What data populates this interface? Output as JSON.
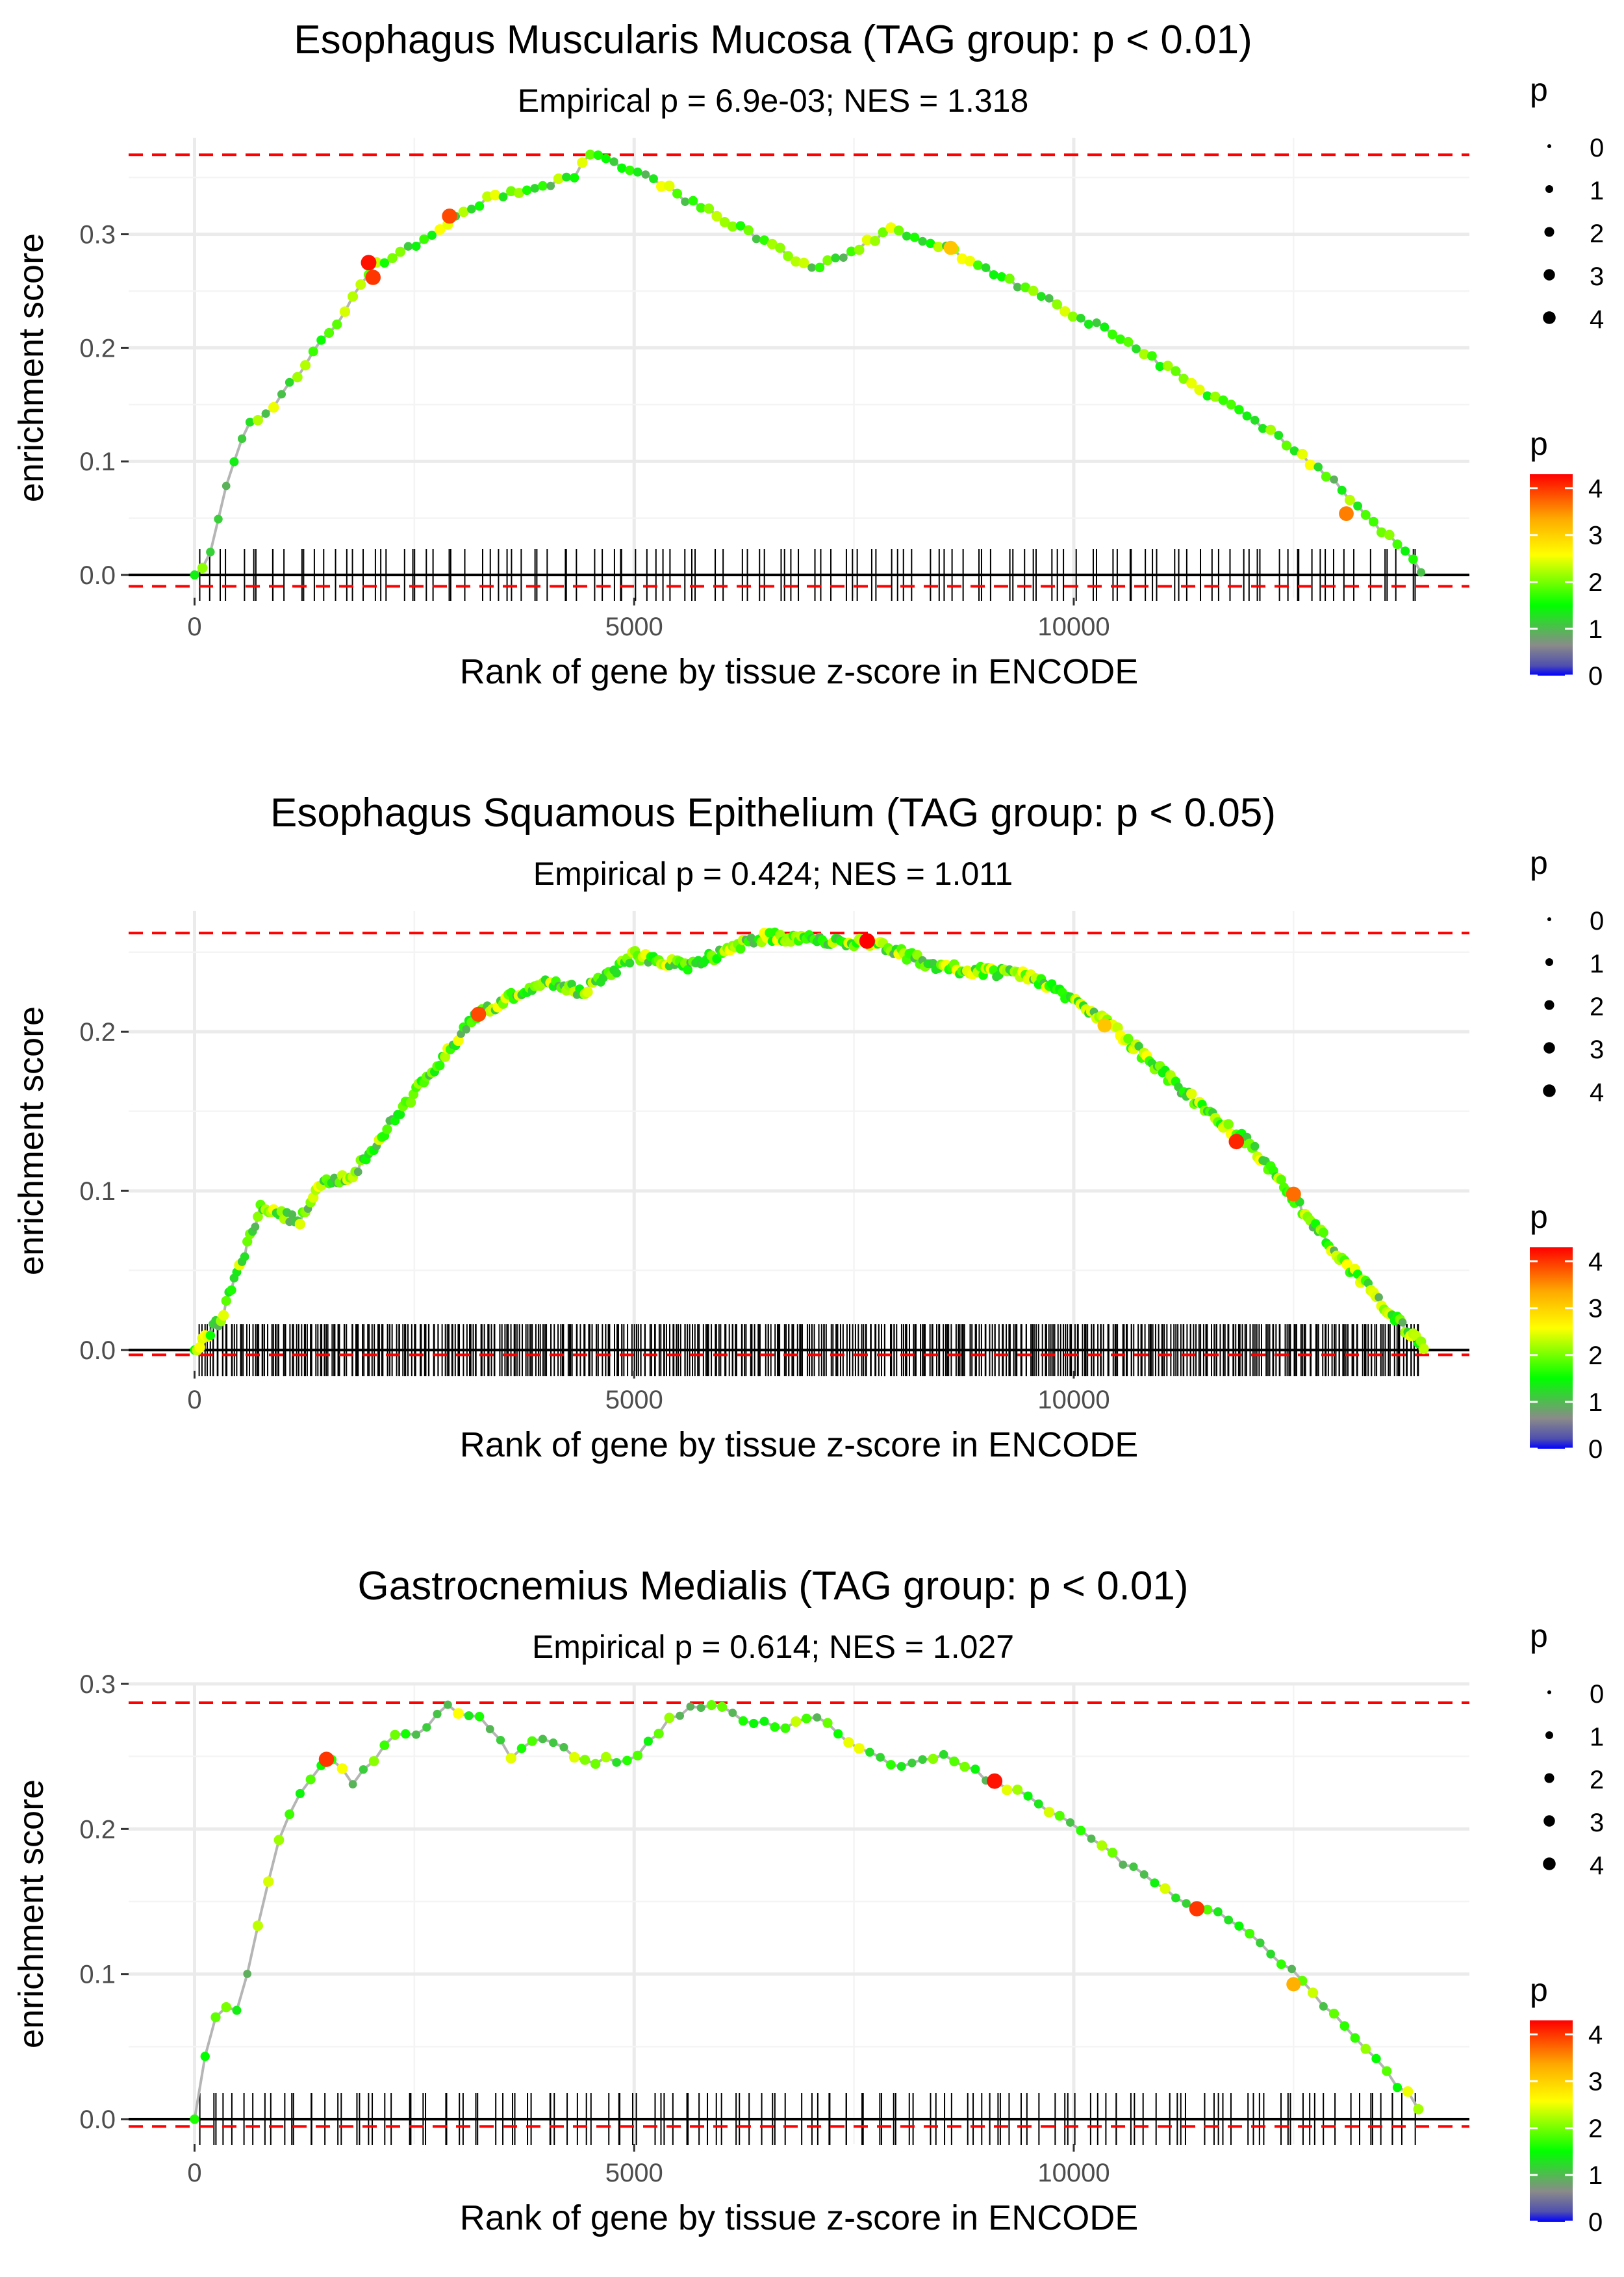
{
  "legend_common": {
    "size_title": "p",
    "size_labels": [
      "0",
      "1",
      "2",
      "3",
      "4"
    ],
    "color_title": "p",
    "color_ticks": [
      "4",
      "3",
      "2",
      "1",
      "0"
    ]
  },
  "chart_data": [
    {
      "type": "line",
      "title": "Esophagus Muscularis Mucosa (TAG group: p < 0.01)",
      "subtitle": "Empirical p = 6.9e-03; NES = 1.318",
      "xlabel": "Rank of gene by tissue z-score in ENCODE",
      "ylabel": "enrichment score",
      "xlim": [
        -750,
        14500
      ],
      "ylim": [
        -0.02,
        0.385
      ],
      "x_ticks": [
        0,
        5000,
        10000
      ],
      "x_tick_labels": [
        "0",
        "5000",
        "10000"
      ],
      "y_ticks": [
        0.0,
        0.1,
        0.2,
        0.3
      ],
      "y_tick_labels": [
        "0.0",
        "0.1",
        "0.2",
        "0.3"
      ],
      "max_es": 0.37,
      "min_es": -0.01,
      "n_genes": 14000,
      "rug_count": 130,
      "point_spacing": 90,
      "seed": 11,
      "anchors": [
        [
          0,
          0.0
        ],
        [
          150,
          0.01
        ],
        [
          400,
          0.09
        ],
        [
          600,
          0.13
        ],
        [
          900,
          0.15
        ],
        [
          1300,
          0.19
        ],
        [
          1700,
          0.23
        ],
        [
          2000,
          0.27
        ],
        [
          2300,
          0.28
        ],
        [
          2900,
          0.31
        ],
        [
          3300,
          0.33
        ],
        [
          3800,
          0.34
        ],
        [
          4300,
          0.35
        ],
        [
          4500,
          0.37
        ],
        [
          4800,
          0.36
        ],
        [
          5200,
          0.35
        ],
        [
          5600,
          0.33
        ],
        [
          6100,
          0.31
        ],
        [
          6600,
          0.29
        ],
        [
          7000,
          0.27
        ],
        [
          7400,
          0.28
        ],
        [
          7900,
          0.305
        ],
        [
          8500,
          0.29
        ],
        [
          9000,
          0.27
        ],
        [
          9500,
          0.25
        ],
        [
          10000,
          0.23
        ],
        [
          10500,
          0.21
        ],
        [
          11000,
          0.185
        ],
        [
          11500,
          0.16
        ],
        [
          12000,
          0.14
        ],
        [
          12500,
          0.11
        ],
        [
          13000,
          0.08
        ],
        [
          13500,
          0.04
        ],
        [
          14000,
          0.0
        ]
      ],
      "big_points": [
        [
          1980,
          0.275,
          4.2
        ],
        [
          2030,
          0.262,
          4.0
        ],
        [
          2900,
          0.316,
          3.9
        ],
        [
          8600,
          0.288,
          3.1
        ],
        [
          13100,
          0.054,
          3.6
        ]
      ],
      "legend_size_title": "p",
      "legend_color_title": "p"
    },
    {
      "type": "line",
      "title": "Esophagus Squamous Epithelium (TAG group: p < 0.05)",
      "subtitle": "Empirical p = 0.424; NES = 1.011",
      "xlabel": "Rank of gene by tissue z-score in ENCODE",
      "ylabel": "enrichment score",
      "xlim": [
        -750,
        14500
      ],
      "ylim": [
        -0.013,
        0.276
      ],
      "x_ticks": [
        0,
        5000,
        10000
      ],
      "x_tick_labels": [
        "0",
        "5000",
        "10000"
      ],
      "y_ticks": [
        0.0,
        0.1,
        0.2
      ],
      "y_tick_labels": [
        "0.0",
        "0.1",
        "0.2"
      ],
      "max_es": 0.262,
      "min_es": -0.003,
      "n_genes": 14000,
      "rug_count": 520,
      "point_spacing": 30,
      "seed": 23,
      "anchors": [
        [
          0,
          0.0
        ],
        [
          300,
          0.02
        ],
        [
          500,
          0.05
        ],
        [
          750,
          0.09
        ],
        [
          1000,
          0.085
        ],
        [
          1200,
          0.08
        ],
        [
          1400,
          0.105
        ],
        [
          1800,
          0.11
        ],
        [
          2200,
          0.14
        ],
        [
          2700,
          0.175
        ],
        [
          3200,
          0.21
        ],
        [
          3700,
          0.225
        ],
        [
          4000,
          0.232
        ],
        [
          4400,
          0.225
        ],
        [
          4700,
          0.235
        ],
        [
          5000,
          0.248
        ],
        [
          5300,
          0.245
        ],
        [
          5600,
          0.24
        ],
        [
          6000,
          0.25
        ],
        [
          6500,
          0.26
        ],
        [
          7000,
          0.258
        ],
        [
          7700,
          0.256
        ],
        [
          8000,
          0.25
        ],
        [
          8500,
          0.24
        ],
        [
          9000,
          0.238
        ],
        [
          9500,
          0.235
        ],
        [
          10000,
          0.22
        ],
        [
          10500,
          0.2
        ],
        [
          11000,
          0.175
        ],
        [
          11500,
          0.15
        ],
        [
          12000,
          0.13
        ],
        [
          12500,
          0.095
        ],
        [
          13000,
          0.06
        ],
        [
          13500,
          0.03
        ],
        [
          14000,
          0.0
        ]
      ],
      "big_points": [
        [
          3230,
          0.211,
          3.9
        ],
        [
          7650,
          0.257,
          4.3
        ],
        [
          10350,
          0.204,
          3.1
        ],
        [
          11850,
          0.131,
          4.1
        ],
        [
          12500,
          0.098,
          3.7
        ]
      ],
      "legend_size_title": "p",
      "legend_color_title": "p"
    },
    {
      "type": "line",
      "title": "Gastrocnemius Medialis (TAG group: p < 0.01)",
      "subtitle": "Empirical p = 0.614; NES = 1.027",
      "xlabel": "Rank of gene by tissue z-score in ENCODE",
      "ylabel": "enrichment score",
      "xlim": [
        -750,
        14500
      ],
      "ylim": [
        -0.017,
        0.3
      ],
      "x_ticks": [
        0,
        5000,
        10000
      ],
      "x_tick_labels": [
        "0",
        "5000",
        "10000"
      ],
      "y_ticks": [
        0.0,
        0.1,
        0.2,
        0.3
      ],
      "y_tick_labels": [
        "0.0",
        "0.1",
        "0.2",
        "0.3"
      ],
      "max_es": 0.287,
      "min_es": -0.005,
      "n_genes": 14000,
      "rug_count": 140,
      "point_spacing": 120,
      "seed": 37,
      "anchors": [
        [
          0,
          0.0
        ],
        [
          100,
          0.04
        ],
        [
          200,
          0.07
        ],
        [
          400,
          0.08
        ],
        [
          500,
          0.07
        ],
        [
          700,
          0.13
        ],
        [
          1000,
          0.2
        ],
        [
          1300,
          0.235
        ],
        [
          1550,
          0.25
        ],
        [
          1800,
          0.23
        ],
        [
          2200,
          0.26
        ],
        [
          2600,
          0.27
        ],
        [
          2800,
          0.285
        ],
        [
          3200,
          0.28
        ],
        [
          3600,
          0.25
        ],
        [
          4000,
          0.265
        ],
        [
          4500,
          0.245
        ],
        [
          5000,
          0.25
        ],
        [
          5500,
          0.28
        ],
        [
          5900,
          0.287
        ],
        [
          6300,
          0.275
        ],
        [
          6700,
          0.27
        ],
        [
          7000,
          0.28
        ],
        [
          7500,
          0.26
        ],
        [
          8000,
          0.24
        ],
        [
          8500,
          0.25
        ],
        [
          9000,
          0.235
        ],
        [
          9500,
          0.22
        ],
        [
          10000,
          0.205
        ],
        [
          10500,
          0.18
        ],
        [
          11000,
          0.16
        ],
        [
          11500,
          0.145
        ],
        [
          12000,
          0.13
        ],
        [
          12500,
          0.1
        ],
        [
          13000,
          0.07
        ],
        [
          13500,
          0.035
        ],
        [
          14000,
          0.005
        ]
      ],
      "big_points": [
        [
          1500,
          0.248,
          4.0
        ],
        [
          9100,
          0.233,
          4.2
        ],
        [
          11400,
          0.145,
          4.0
        ],
        [
          12500,
          0.093,
          3.3
        ]
      ],
      "legend_size_title": "p",
      "legend_color_title": "p"
    }
  ]
}
